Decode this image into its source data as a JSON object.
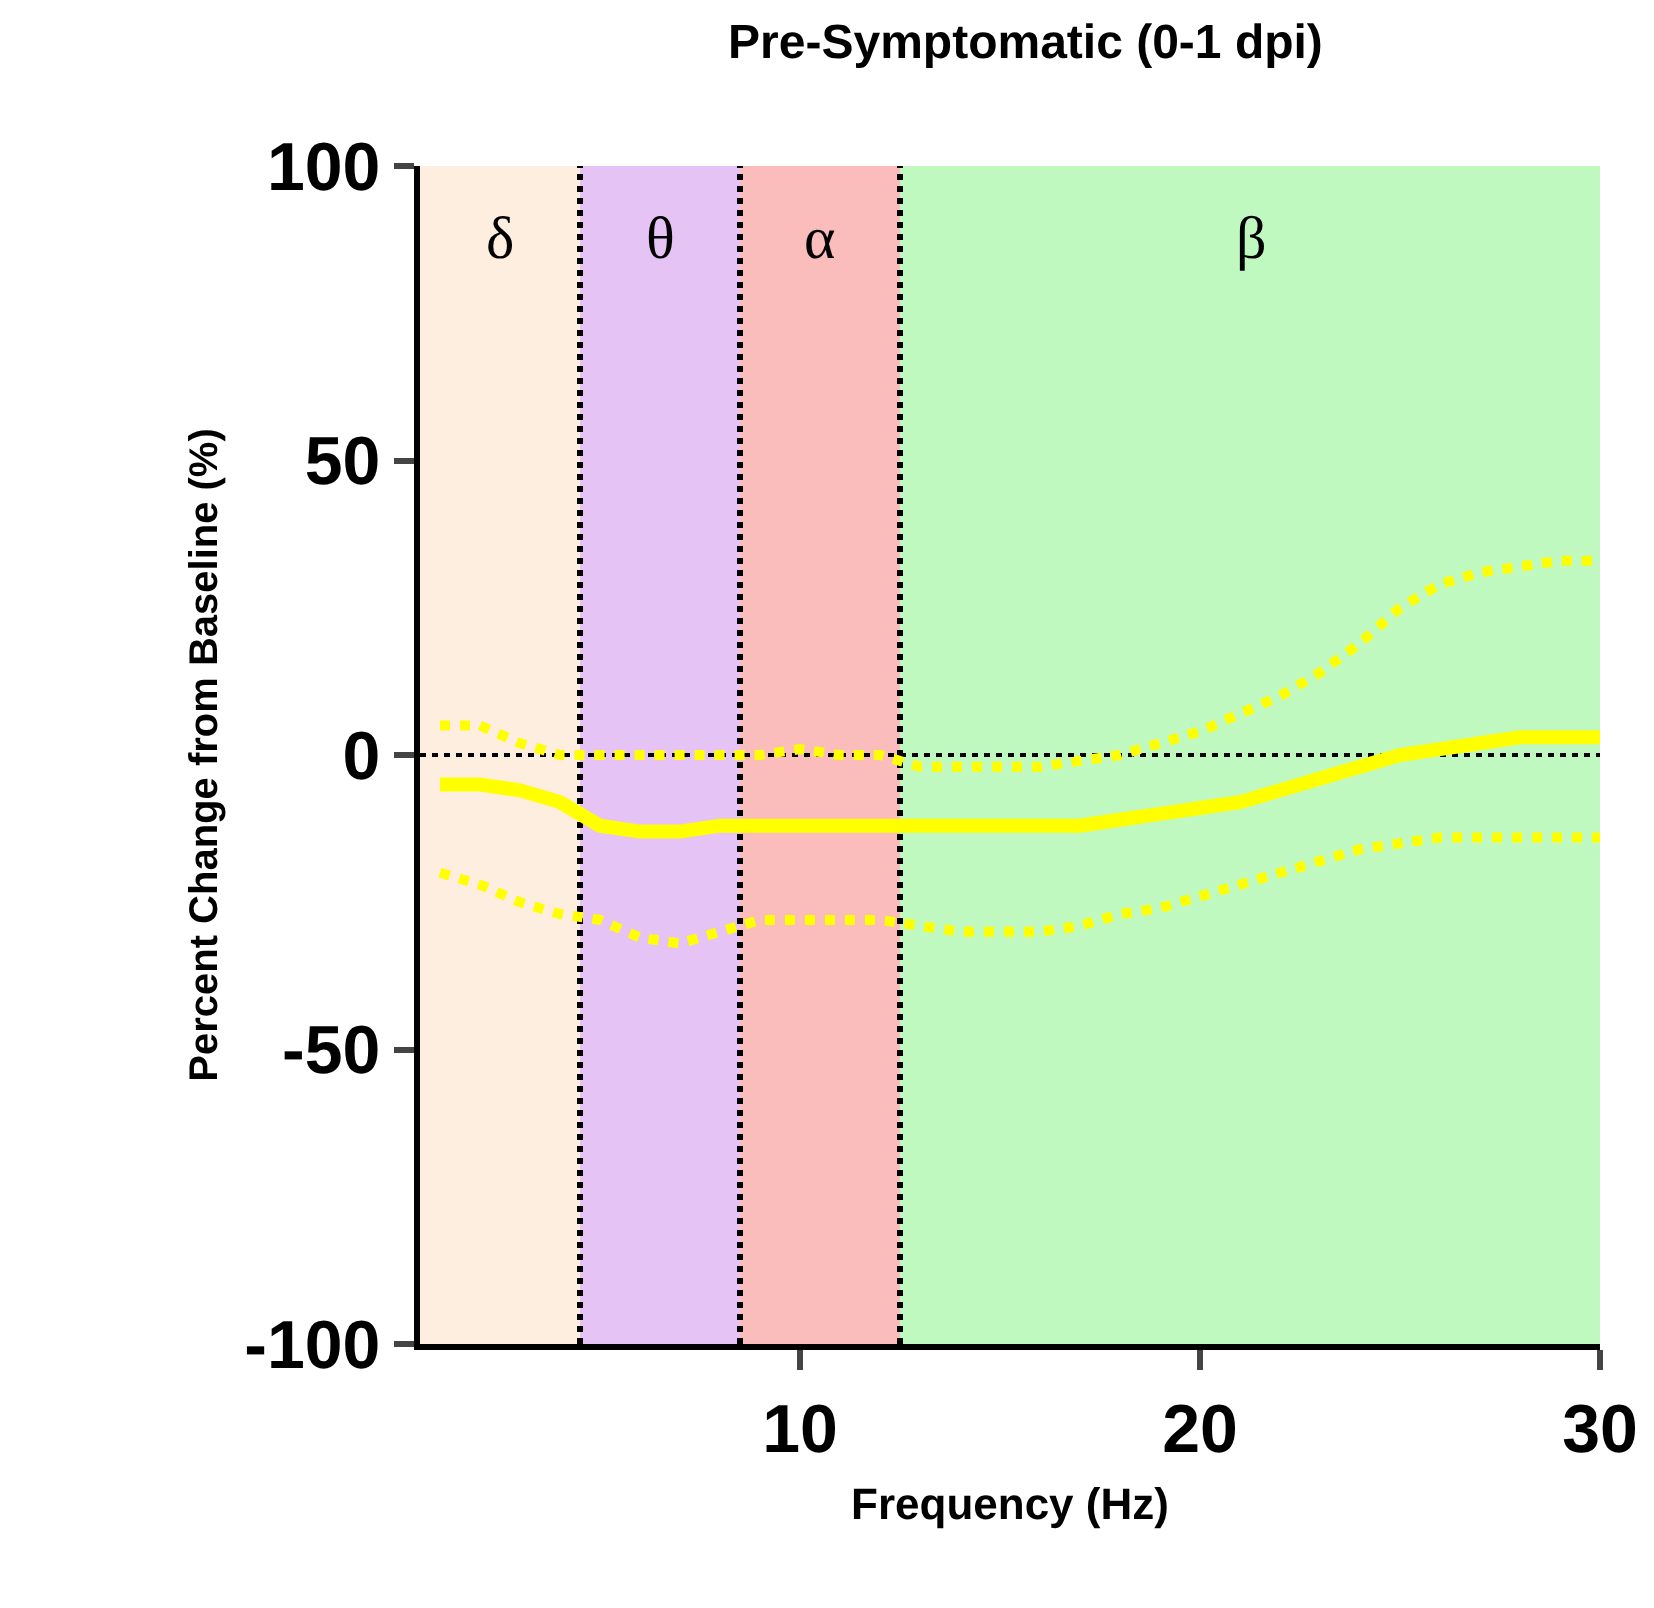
{
  "chart_data": {
    "type": "line",
    "title": "Pre-Symptomatic (0-1 dpi)",
    "xlabel": "Frequency (Hz)",
    "ylabel": "Percent Change from Baseline (%)",
    "xlim": [
      0.5,
      30
    ],
    "xticks": [
      10,
      20,
      30
    ],
    "ylim": [
      -100,
      100
    ],
    "yticks": [
      -100,
      -50,
      0,
      50,
      100
    ],
    "marker": "none",
    "x": [
      1,
      2,
      3,
      4,
      5,
      6,
      7,
      8,
      9,
      10,
      11,
      12,
      13,
      14,
      15,
      16,
      17,
      18,
      19,
      20,
      21,
      22,
      23,
      24,
      25,
      26,
      27,
      28,
      29,
      30
    ],
    "series": [
      {
        "color": "#ffff00",
        "line_style": "dotted",
        "values": [
          5,
          5,
          2,
          0,
          0,
          0,
          0,
          0,
          0,
          1,
          0,
          0,
          -2,
          -2,
          -2,
          -2,
          -1,
          0,
          2,
          4,
          7,
          10,
          14,
          19,
          25,
          29,
          31,
          32,
          33,
          33
        ]
      },
      {
        "color": "#ffff00",
        "line_style": "solid",
        "values": [
          -5,
          -5,
          -6,
          -8,
          -12,
          -13,
          -13,
          -12,
          -12,
          -12,
          -12,
          -12,
          -12,
          -12,
          -12,
          -12,
          -12,
          -11,
          -10,
          -9,
          -8,
          -6,
          -4,
          -2,
          0,
          1,
          2,
          3,
          3,
          3
        ]
      },
      {
        "color": "#ffff00",
        "line_style": "dotted",
        "values": [
          -20,
          -22,
          -25,
          -27,
          -28,
          -31,
          -32,
          -30,
          -28,
          -28,
          -28,
          -28,
          -29,
          -30,
          -30,
          -30,
          -29,
          -27,
          -26,
          -24,
          -22,
          -20,
          -18,
          -16,
          -15,
          -14,
          -14,
          -14,
          -14,
          -14
        ]
      }
    ],
    "bands": [
      {
        "axis": "x",
        "from": 0.5,
        "to": 4.5,
        "label": "δ",
        "color": "#fdeee0"
      },
      {
        "axis": "x",
        "from": 4.5,
        "to": 8.5,
        "label": "θ",
        "color": "#e6c3f5"
      },
      {
        "axis": "x",
        "from": 8.5,
        "to": 12.5,
        "label": "α",
        "color": "#fbbcbc"
      },
      {
        "axis": "x",
        "from": 12.5,
        "to": 30,
        "label": "β",
        "color": "#c0f9bf"
      }
    ],
    "ref_lines": [
      {
        "axis": "x",
        "value": 4.5,
        "line_style": "dotted",
        "color": "#000000"
      },
      {
        "axis": "x",
        "value": 8.5,
        "line_style": "dotted",
        "color": "#000000"
      },
      {
        "axis": "x",
        "value": 12.5,
        "line_style": "dotted",
        "color": "#000000"
      },
      {
        "axis": "y",
        "value": 0,
        "line_style": "dotted",
        "color": "#000000"
      }
    ]
  }
}
